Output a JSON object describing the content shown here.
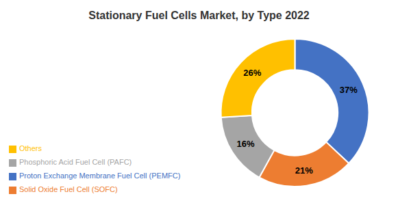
{
  "chart_data": {
    "type": "pie",
    "title": "Stationary Fuel Cells Market, by Type 2022",
    "categories": [
      "Proton Exchange Membrane Fuel Cell (PEMFC)",
      "Solid Oxide Fuel Cell (SOFC)",
      "Phosphoric Acid Fuel Cell (PAFC)",
      "Others"
    ],
    "values": [
      37,
      21,
      16,
      26
    ],
    "value_labels": [
      "37%",
      "21%",
      "16%",
      "26%"
    ],
    "colors": [
      "#4472C4",
      "#ED7D31",
      "#A5A5A5",
      "#FFC000"
    ],
    "data_labels": true,
    "legend": "lower left"
  }
}
